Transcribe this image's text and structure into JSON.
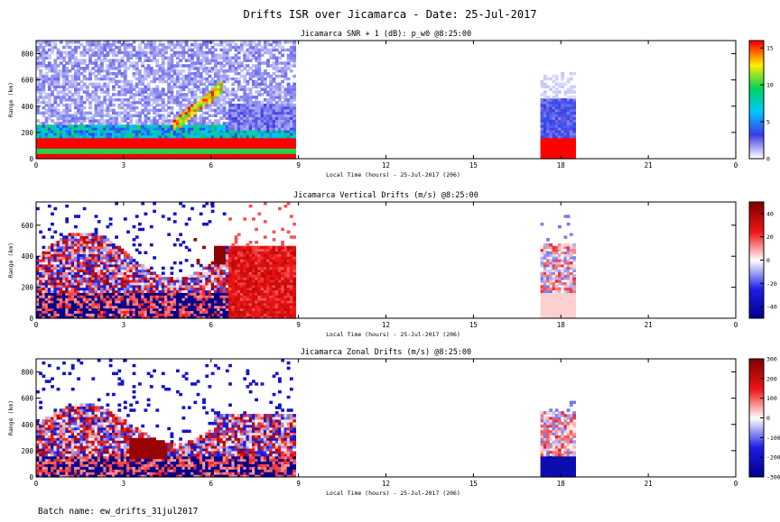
{
  "figure": {
    "title": "Drifts ISR over Jicamarca - Date: 25-Jul-2017",
    "batch": "Batch name: ew_drifts_31jul2017"
  },
  "colors": {
    "red": "#ff0000",
    "dark_red": "#990000",
    "blue": "#2020d0",
    "light_blue": "#c8cff4"
  },
  "chart_data": [
    {
      "type": "heatmap",
      "title": "Jicamarca SNR + 1 (dB): p_w0 @8:25:00",
      "xlabel": "Local Time (hours) - 25-Jul-2017 (206)",
      "ylabel": "Range (km)",
      "x_ticks": [
        "0",
        "3",
        "6",
        "9",
        "12",
        "15",
        "18",
        "21",
        "0"
      ],
      "y_ticks": [
        "0",
        "200",
        "400",
        "600",
        "800"
      ],
      "xlim": [
        0,
        24
      ],
      "ylim": [
        0,
        900
      ],
      "colorbar": {
        "ticks": [
          "0",
          "5",
          "10",
          "15"
        ],
        "range": [
          0,
          16
        ],
        "palette": "rainbow"
      },
      "data_segments": [
        [
          0,
          8.8
        ],
        [
          17.3,
          18.5
        ]
      ]
    },
    {
      "type": "heatmap",
      "title": "Jicamarca Vertical Drifts (m/s) @8:25:00",
      "xlabel": "Local Time (hours) - 25-Jul-2017 (206)",
      "ylabel": "Range (km)",
      "x_ticks": [
        "0",
        "3",
        "6",
        "9",
        "12",
        "15",
        "18",
        "21",
        "0"
      ],
      "y_ticks": [
        "0",
        "200",
        "400",
        "600"
      ],
      "xlim": [
        0,
        24
      ],
      "ylim": [
        0,
        750
      ],
      "colorbar": {
        "ticks": [
          "-40",
          "-20",
          "0",
          "20",
          "40"
        ],
        "range": [
          -50,
          50
        ],
        "palette": "blue-white-red"
      },
      "data_segments": [
        [
          0,
          8.8
        ],
        [
          17.3,
          18.5
        ]
      ]
    },
    {
      "type": "heatmap",
      "title": "Jicamarca Zonal Drifts (m/s) @8:25:00",
      "xlabel": "Local Time (hours) - 25-Jul-2017 (206)",
      "ylabel": "Range (km)",
      "x_ticks": [
        "0",
        "3",
        "6",
        "9",
        "12",
        "15",
        "18",
        "21",
        "0"
      ],
      "y_ticks": [
        "0",
        "200",
        "400",
        "600",
        "800"
      ],
      "xlim": [
        0,
        24
      ],
      "ylim": [
        0,
        900
      ],
      "colorbar": {
        "ticks": [
          "-300",
          "-200",
          "-100",
          "0",
          "100",
          "200",
          "300"
        ],
        "range": [
          -300,
          300
        ],
        "palette": "blue-white-red"
      },
      "data_segments": [
        [
          0,
          8.8
        ],
        [
          17.3,
          18.5
        ]
      ]
    }
  ]
}
